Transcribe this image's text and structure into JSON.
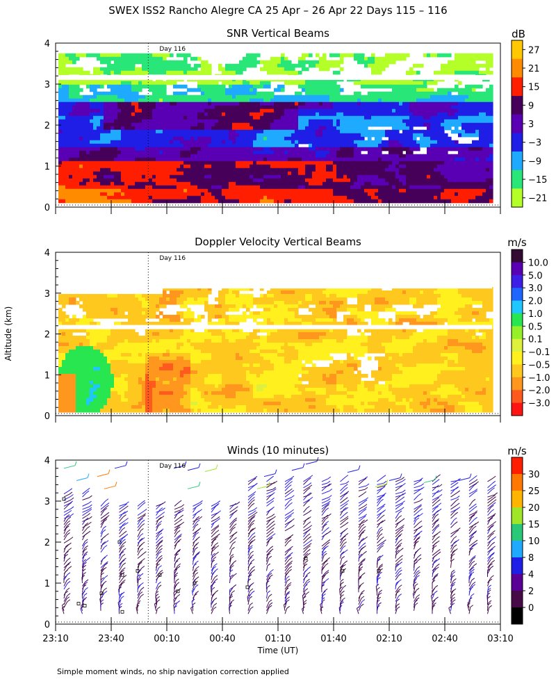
{
  "figure": {
    "title": "SWEX ISS2 Rancho Alegre CA  25 Apr – 26 Apr 22 Days 115 – 116",
    "ylabel": "Altitude (km)",
    "xlabel": "Time (UT)",
    "footnote": "Simple moment winds, no ship navigation correction applied",
    "day_marker_label": "Day 116",
    "time_ticks": [
      "23:10",
      "23:40",
      "00:10",
      "00:40",
      "01:10",
      "01:40",
      "02:10",
      "02:40",
      "03:10"
    ],
    "altitude_ticks": [
      "0",
      "1",
      "2",
      "3",
      "4"
    ]
  },
  "chart_data": [
    {
      "type": "heatmap",
      "title": "SNR Vertical Beams",
      "unit": "dB",
      "x_range": [
        "23:10",
        "03:10"
      ],
      "ylim": [
        0,
        4
      ],
      "day_boundary": "00:00",
      "colorbar": {
        "labels": [
          "27",
          "21",
          "15",
          "9",
          "3",
          "−3",
          "−9",
          "−15",
          "−21"
        ],
        "colors": [
          "#ffc800",
          "#ff8c00",
          "#ff1e00",
          "#46005a",
          "#5a00b4",
          "#1e1ee6",
          "#1eaaff",
          "#28e678",
          "#b4ff28"
        ]
      }
    },
    {
      "type": "heatmap",
      "title": "Doppler Velocity Vertical Beams",
      "unit": "m/s",
      "x_range": [
        "23:10",
        "03:10"
      ],
      "ylim": [
        0,
        4
      ],
      "day_boundary": "00:00",
      "colorbar": {
        "labels": [
          "10.0",
          "5.0",
          "3.0",
          "2.0",
          "1.0",
          "0.5",
          "0.1",
          "−0.1",
          "−0.5",
          "−1.0",
          "−2.0",
          "−3.0"
        ],
        "colors": [
          "#320a32",
          "#5a00b4",
          "#3c1ee6",
          "#1e64ff",
          "#1ec8ff",
          "#28e650",
          "#96f028",
          "#dcf03c",
          "#fff01e",
          "#ffc81e",
          "#ff961e",
          "#ff5a1e",
          "#ff1414"
        ]
      }
    },
    {
      "type": "scatter",
      "title": "Winds (10 minutes)",
      "unit": "m/s",
      "x_range": [
        "23:10",
        "03:10"
      ],
      "ylim": [
        0,
        4
      ],
      "day_boundary": "00:00",
      "colorbar": {
        "labels": [
          "30",
          "25",
          "20",
          "15",
          "10",
          "8",
          "4",
          "2",
          "0"
        ],
        "colors": [
          "#ff1e00",
          "#ff7800",
          "#ffb400",
          "#a0e628",
          "#28c878",
          "#1eaaff",
          "#1e1ee6",
          "#5a0096",
          "#460a46",
          "#000000"
        ]
      }
    }
  ]
}
